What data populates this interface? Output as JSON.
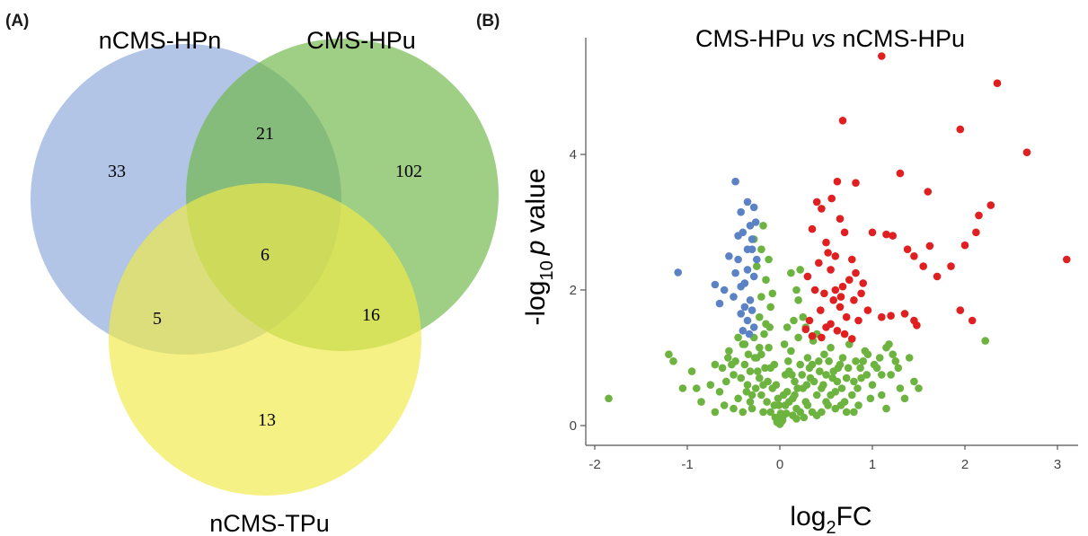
{
  "panel_a_label": "(A)",
  "panel_b_label": "(B)",
  "chart_data": [
    {
      "type": "venn",
      "sets": [
        {
          "name": "nCMS-HPn",
          "color": "#8eaadb"
        },
        {
          "name": "CMS-HPu",
          "color": "#70b84a"
        },
        {
          "name": "nCMS-TPu",
          "color": "#f0ea4a"
        }
      ],
      "regions": [
        {
          "sets": [
            "nCMS-HPn"
          ],
          "value": 33
        },
        {
          "sets": [
            "CMS-HPu"
          ],
          "value": 102
        },
        {
          "sets": [
            "nCMS-TPu"
          ],
          "value": 13
        },
        {
          "sets": [
            "nCMS-HPn",
            "CMS-HPu"
          ],
          "value": 21
        },
        {
          "sets": [
            "nCMS-HPn",
            "nCMS-TPu"
          ],
          "value": 5
        },
        {
          "sets": [
            "CMS-HPu",
            "nCMS-TPu"
          ],
          "value": 16
        },
        {
          "sets": [
            "nCMS-HPn",
            "CMS-HPu",
            "nCMS-TPu"
          ],
          "value": 6
        }
      ]
    },
    {
      "type": "scatter",
      "title_main": "CMS-HPu ",
      "title_italic": "vs",
      "title_rest": " nCMS-HPu",
      "xlabel_main": "log",
      "xlabel_sub": "2",
      "xlabel_rest": "FC",
      "ylabel_pre": "-log",
      "ylabel_sub": "10",
      "ylabel_italic": "p",
      "ylabel_rest": " value",
      "xticks": [
        -2,
        -1,
        0,
        1,
        2,
        3
      ],
      "yticks": [
        0,
        2,
        4
      ],
      "xlim": [
        -2.05,
        3.2
      ],
      "ylim": [
        -0.2,
        5.8
      ],
      "colors": {
        "up": "#e02020",
        "down": "#5b82c5",
        "ns": "#6db33f"
      },
      "up": [
        [
          1.1,
          5.45
        ],
        [
          2.35,
          5.05
        ],
        [
          0.68,
          4.5
        ],
        [
          1.95,
          4.37
        ],
        [
          2.67,
          4.03
        ],
        [
          1.3,
          3.72
        ],
        [
          1.6,
          3.45
        ],
        [
          0.82,
          3.58
        ],
        [
          0.62,
          3.6
        ],
        [
          2.15,
          3.1
        ],
        [
          2.28,
          3.25
        ],
        [
          2.0,
          2.66
        ],
        [
          2.12,
          2.85
        ],
        [
          1.38,
          2.6
        ],
        [
          1.62,
          2.65
        ],
        [
          1.15,
          2.82
        ],
        [
          1.22,
          2.8
        ],
        [
          1.0,
          2.85
        ],
        [
          1.85,
          2.35
        ],
        [
          1.55,
          2.35
        ],
        [
          1.7,
          2.2
        ],
        [
          1.45,
          2.5
        ],
        [
          3.1,
          2.45
        ],
        [
          0.4,
          3.3
        ],
        [
          0.45,
          3.2
        ],
        [
          0.35,
          2.9
        ],
        [
          0.5,
          2.7
        ],
        [
          0.6,
          2.5
        ],
        [
          0.42,
          2.4
        ],
        [
          0.55,
          2.3
        ],
        [
          0.3,
          2.2
        ],
        [
          0.38,
          2.0
        ],
        [
          0.48,
          1.95
        ],
        [
          0.58,
          1.85
        ],
        [
          0.65,
          1.75
        ],
        [
          0.72,
          1.6
        ],
        [
          0.85,
          1.55
        ],
        [
          0.95,
          1.7
        ],
        [
          1.1,
          1.6
        ],
        [
          1.2,
          1.62
        ],
        [
          1.35,
          1.65
        ],
        [
          1.45,
          1.55
        ],
        [
          1.95,
          1.7
        ],
        [
          2.08,
          1.55
        ],
        [
          0.32,
          1.55
        ],
        [
          0.28,
          1.42
        ],
        [
          0.35,
          1.32
        ],
        [
          0.45,
          1.3
        ],
        [
          0.55,
          1.5
        ],
        [
          0.62,
          1.4
        ],
        [
          0.7,
          1.35
        ],
        [
          0.78,
          1.28
        ],
        [
          0.68,
          2.05
        ],
        [
          0.75,
          2.15
        ],
        [
          0.82,
          2.25
        ],
        [
          0.9,
          2.1
        ],
        [
          0.66,
          1.9
        ],
        [
          0.52,
          2.55
        ],
        [
          0.6,
          2.0
        ],
        [
          0.44,
          1.7
        ],
        [
          0.5,
          1.45
        ],
        [
          0.8,
          1.85
        ],
        [
          0.88,
          1.95
        ],
        [
          0.78,
          2.45
        ],
        [
          1.48,
          1.48
        ],
        [
          0.7,
          2.85
        ],
        [
          0.65,
          3.05
        ],
        [
          0.56,
          3.35
        ]
      ],
      "down": [
        [
          -0.48,
          3.6
        ],
        [
          -1.1,
          2.26
        ],
        [
          -0.35,
          3.3
        ],
        [
          -0.28,
          3.22
        ],
        [
          -0.32,
          2.95
        ],
        [
          -0.4,
          2.85
        ],
        [
          -0.3,
          2.75
        ],
        [
          -0.35,
          2.6
        ],
        [
          -0.55,
          2.5
        ],
        [
          -0.45,
          2.45
        ],
        [
          -0.35,
          2.3
        ],
        [
          -0.28,
          2.2
        ],
        [
          -0.38,
          2.1
        ],
        [
          -0.6,
          2.0
        ],
        [
          -0.42,
          2.05
        ],
        [
          -0.5,
          1.9
        ],
        [
          -0.32,
          1.85
        ],
        [
          -0.38,
          1.75
        ],
        [
          -0.3,
          1.7
        ],
        [
          -0.42,
          1.65
        ],
        [
          -0.35,
          1.55
        ],
        [
          -0.28,
          1.45
        ],
        [
          -0.4,
          1.4
        ],
        [
          -0.33,
          1.35
        ],
        [
          -0.7,
          2.08
        ],
        [
          -0.65,
          1.8
        ],
        [
          -0.3,
          2.6
        ],
        [
          -0.45,
          2.8
        ],
        [
          -0.25,
          2.45
        ],
        [
          -0.42,
          3.15
        ],
        [
          -0.26,
          3.0
        ],
        [
          -0.48,
          2.25
        ]
      ],
      "ns": [
        [
          -1.85,
          0.4
        ],
        [
          -1.2,
          1.05
        ],
        [
          -1.15,
          0.95
        ],
        [
          -0.95,
          0.8
        ],
        [
          -0.9,
          0.55
        ],
        [
          -1.05,
          0.55
        ],
        [
          -0.85,
          0.35
        ],
        [
          -0.75,
          0.6
        ],
        [
          -0.7,
          0.9
        ],
        [
          -0.65,
          0.5
        ],
        [
          -0.6,
          0.3
        ],
        [
          -0.55,
          1.1
        ],
        [
          -0.5,
          0.75
        ],
        [
          -0.45,
          0.4
        ],
        [
          -0.4,
          1.2
        ],
        [
          -0.38,
          0.9
        ],
        [
          -0.35,
          0.6
        ],
        [
          -0.3,
          0.25
        ],
        [
          -0.28,
          1.3
        ],
        [
          -0.25,
          1.0
        ],
        [
          -0.22,
          0.7
        ],
        [
          -0.2,
          0.45
        ],
        [
          -0.18,
          0.2
        ],
        [
          -0.15,
          1.5
        ],
        [
          -0.12,
          1.15
        ],
        [
          -0.1,
          0.85
        ],
        [
          -0.08,
          0.55
        ],
        [
          -0.06,
          0.3
        ],
        [
          -0.05,
          0.12
        ],
        [
          -0.03,
          0.05
        ],
        [
          0.0,
          0.02
        ],
        [
          0.02,
          0.06
        ],
        [
          0.04,
          0.15
        ],
        [
          0.06,
          0.3
        ],
        [
          0.08,
          0.5
        ],
        [
          0.1,
          0.8
        ],
        [
          0.12,
          1.1
        ],
        [
          0.14,
          0.4
        ],
        [
          0.16,
          0.65
        ],
        [
          0.18,
          0.25
        ],
        [
          0.2,
          1.3
        ],
        [
          0.22,
          0.9
        ],
        [
          0.25,
          0.55
        ],
        [
          0.28,
          0.35
        ],
        [
          0.3,
          1.0
        ],
        [
          0.33,
          0.7
        ],
        [
          0.36,
          1.25
        ],
        [
          0.4,
          0.45
        ],
        [
          0.42,
          0.95
        ],
        [
          0.45,
          0.2
        ],
        [
          0.5,
          0.75
        ],
        [
          0.55,
          1.15
        ],
        [
          0.6,
          0.5
        ],
        [
          0.65,
          0.9
        ],
        [
          0.7,
          0.35
        ],
        [
          0.75,
          1.2
        ],
        [
          0.8,
          0.65
        ],
        [
          0.85,
          0.3
        ],
        [
          0.9,
          0.95
        ],
        [
          0.95,
          1.05
        ],
        [
          1.0,
          0.6
        ],
        [
          1.05,
          0.85
        ],
        [
          1.1,
          0.45
        ],
        [
          1.15,
          1.15
        ],
        [
          1.2,
          0.75
        ],
        [
          1.25,
          0.95
        ],
        [
          1.3,
          0.55
        ],
        [
          1.35,
          0.4
        ],
        [
          1.45,
          0.65
        ],
        [
          1.5,
          0.55
        ],
        [
          1.15,
          0.25
        ],
        [
          0.25,
          1.6
        ],
        [
          0.2,
          1.85
        ],
        [
          0.18,
          2.0
        ],
        [
          0.12,
          2.25
        ],
        [
          0.22,
          2.3
        ],
        [
          -0.2,
          2.6
        ],
        [
          -0.18,
          2.95
        ],
        [
          -0.12,
          2.45
        ],
        [
          -0.15,
          2.15
        ],
        [
          -0.2,
          1.9
        ],
        [
          -0.1,
          1.75
        ],
        [
          -0.22,
          1.6
        ],
        [
          -0.25,
          2.35
        ],
        [
          -0.28,
          2.75
        ],
        [
          -0.08,
          1.95
        ],
        [
          -0.32,
          0.8
        ],
        [
          -0.02,
          0.4
        ],
        [
          -0.06,
          0.9
        ],
        [
          0.05,
          1.2
        ],
        [
          0.08,
          1.45
        ],
        [
          0.15,
          1.55
        ],
        [
          0.28,
          1.45
        ],
        [
          0.35,
          0.9
        ],
        [
          0.4,
          1.35
        ],
        [
          0.48,
          1.05
        ],
        [
          0.52,
          0.3
        ],
        [
          0.58,
          0.8
        ],
        [
          0.62,
          0.65
        ],
        [
          0.68,
          1.0
        ],
        [
          0.72,
          0.7
        ],
        [
          0.78,
          0.45
        ],
        [
          0.82,
          0.95
        ],
        [
          0.88,
          0.7
        ],
        [
          0.92,
          1.1
        ],
        [
          0.98,
          0.4
        ],
        [
          1.08,
          1.0
        ],
        [
          1.18,
          1.2
        ],
        [
          1.28,
          0.85
        ],
        [
          1.4,
          1.0
        ],
        [
          2.22,
          1.25
        ],
        [
          -0.58,
          0.65
        ],
        [
          -0.62,
          0.85
        ],
        [
          -0.48,
          0.95
        ],
        [
          -0.42,
          0.7
        ],
        [
          -0.36,
          0.5
        ],
        [
          -0.32,
          0.35
        ],
        [
          -0.26,
          0.55
        ],
        [
          -0.24,
          0.8
        ],
        [
          -0.18,
          0.6
        ],
        [
          -0.14,
          0.35
        ],
        [
          -0.1,
          0.2
        ],
        [
          -0.02,
          0.1
        ],
        [
          0.03,
          0.08
        ],
        [
          0.07,
          0.18
        ],
        [
          0.1,
          0.35
        ],
        [
          0.14,
          0.15
        ],
        [
          0.18,
          0.1
        ],
        [
          0.22,
          0.2
        ],
        [
          0.26,
          0.12
        ],
        [
          0.3,
          0.3
        ],
        [
          0.35,
          0.2
        ],
        [
          0.4,
          0.15
        ],
        [
          0.45,
          0.55
        ],
        [
          0.5,
          0.35
        ],
        [
          0.55,
          0.45
        ],
        [
          0.6,
          0.25
        ],
        [
          0.66,
          0.3
        ],
        [
          0.72,
          0.2
        ],
        [
          0.8,
          0.2
        ],
        [
          -0.4,
          0.2
        ],
        [
          -0.5,
          0.25
        ],
        [
          -0.7,
          0.2
        ],
        [
          -0.3,
          0.45
        ],
        [
          -0.16,
          0.85
        ],
        [
          -0.13,
          0.65
        ],
        [
          0.06,
          0.75
        ],
        [
          0.09,
          0.95
        ],
        [
          0.13,
          0.75
        ],
        [
          -0.04,
          0.6
        ],
        [
          -0.01,
          0.3
        ],
        [
          0.01,
          0.18
        ],
        [
          0.04,
          0.45
        ],
        [
          0.16,
          0.45
        ],
        [
          0.19,
          0.55
        ],
        [
          0.24,
          0.75
        ],
        [
          0.29,
          0.6
        ],
        [
          0.32,
          0.85
        ],
        [
          0.37,
          0.65
        ],
        [
          0.43,
          0.8
        ],
        [
          0.47,
          0.6
        ],
        [
          0.53,
          0.95
        ],
        [
          0.57,
          0.7
        ],
        [
          0.63,
          0.85
        ],
        [
          0.67,
          0.55
        ],
        [
          0.74,
          0.85
        ],
        [
          0.84,
          0.55
        ],
        [
          0.87,
          0.85
        ],
        [
          0.94,
          0.75
        ],
        [
          1.02,
          0.9
        ],
        [
          1.1,
          0.75
        ],
        [
          1.22,
          1.05
        ],
        [
          -0.22,
          1.15
        ],
        [
          -0.17,
          1.35
        ],
        [
          -0.11,
          1.45
        ],
        [
          -0.2,
          1.05
        ],
        [
          -0.27,
          1.0
        ],
        [
          -0.34,
          1.05
        ],
        [
          -0.38,
          1.2
        ],
        [
          -0.45,
          1.3
        ],
        [
          -0.52,
          0.9
        ],
        [
          -0.56,
          1.0
        ]
      ]
    }
  ]
}
